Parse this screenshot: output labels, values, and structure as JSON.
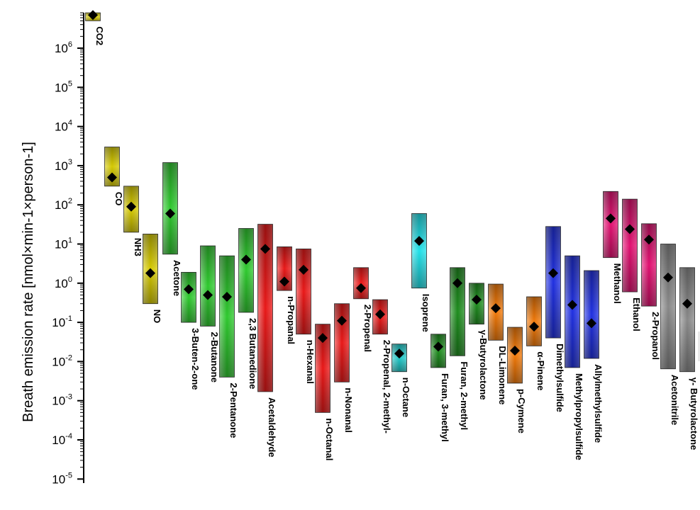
{
  "chart_data": {
    "type": "range",
    "ylabel": "Breath emission rate [nmol×min-1×person-1]",
    "yscale": "log",
    "ylim_exp": [
      -5,
      7
    ],
    "yticks": [
      "10-5",
      "10-4",
      "10-3",
      "10-2",
      "10-1",
      "100",
      "101",
      "102",
      "103",
      "104",
      "105",
      "106"
    ],
    "compounds": [
      {
        "name": "CO2",
        "min": 5000000,
        "max": 8000000,
        "median": 7000000,
        "color": "#d4c800"
      },
      {
        "name": "CO",
        "min": 300,
        "max": 3000,
        "median": 500,
        "color": "#d4c800"
      },
      {
        "name": "NH3",
        "min": 20,
        "max": 300,
        "median": 90,
        "color": "#d4c800"
      },
      {
        "name": "NO",
        "min": 0.3,
        "max": 18,
        "median": 1.8,
        "color": "#d4c800"
      },
      {
        "name": "Acetone",
        "min": 5.5,
        "max": 1200,
        "median": 60,
        "color": "#2ec82e"
      },
      {
        "name": "3-Buten-2-one",
        "min": 0.1,
        "max": 1.9,
        "median": 0.7,
        "color": "#2ec82e"
      },
      {
        "name": "2-Butanone",
        "min": 0.08,
        "max": 9,
        "median": 0.5,
        "color": "#2ec82e"
      },
      {
        "name": "2-Pentanone",
        "min": 0.004,
        "max": 5,
        "median": 0.45,
        "color": "#2ec82e"
      },
      {
        "name": "2,3 Butanedione",
        "min": 0.18,
        "max": 25,
        "median": 4,
        "color": "#2ec82e"
      },
      {
        "name": "Acetaldehyde",
        "min": 0.0017,
        "max": 32,
        "median": 7.5,
        "color": "#e81818"
      },
      {
        "name": "n-Propanal",
        "min": 0.65,
        "max": 8.5,
        "median": 1.1,
        "color": "#e81818"
      },
      {
        "name": "n-Hexanal",
        "min": 0.05,
        "max": 7.5,
        "median": 2.2,
        "color": "#e81818"
      },
      {
        "name": "n-Octanal",
        "min": 0.0005,
        "max": 0.09,
        "median": 0.04,
        "color": "#e81818"
      },
      {
        "name": "n-Nonanal",
        "min": 0.003,
        "max": 0.3,
        "median": 0.11,
        "color": "#e81818"
      },
      {
        "name": "2-Propenal",
        "min": 0.4,
        "max": 2.5,
        "median": 0.75,
        "color": "#e81818"
      },
      {
        "name": "2-Propenal, 2-methyl-",
        "min": 0.05,
        "max": 0.38,
        "median": 0.16,
        "color": "#e81818"
      },
      {
        "name": "n-Octane",
        "min": 0.0055,
        "max": 0.028,
        "median": 0.016,
        "color": "#20c8c8"
      },
      {
        "name": "Isoprene",
        "min": 0.75,
        "max": 60,
        "median": 12,
        "color": "#20e0e8"
      },
      {
        "name": "Furan, 3-methyl",
        "min": 0.007,
        "max": 0.05,
        "median": 0.024,
        "color": "#1e8c1e"
      },
      {
        "name": "Furan, 2-methyl",
        "min": 0.014,
        "max": 2.5,
        "median": 1.0,
        "color": "#1e8c1e"
      },
      {
        "name": "γ-Butyrolactone",
        "min": 0.09,
        "max": 1.0,
        "median": 0.38,
        "color": "#1e8c1e"
      },
      {
        "name": "DL-Limonene",
        "min": 0.035,
        "max": 0.95,
        "median": 0.23,
        "color": "#f07808"
      },
      {
        "name": "p-Cymene",
        "min": 0.0028,
        "max": 0.075,
        "median": 0.019,
        "color": "#f07808"
      },
      {
        "name": "α-Pinene",
        "min": 0.025,
        "max": 0.45,
        "median": 0.078,
        "color": "#f07808"
      },
      {
        "name": "Dimethylsulfide",
        "min": 0.04,
        "max": 28,
        "median": 1.8,
        "color": "#2030e0"
      },
      {
        "name": "Methylpropylsulfide",
        "min": 0.007,
        "max": 5,
        "median": 0.28,
        "color": "#2030e0"
      },
      {
        "name": "Allylmethylsulfide",
        "min": 0.012,
        "max": 2.1,
        "median": 0.095,
        "color": "#2030e0"
      },
      {
        "name": "Methanol",
        "min": 4.5,
        "max": 220,
        "median": 45,
        "color": "#e01070"
      },
      {
        "name": "Ethanol",
        "min": 0.6,
        "max": 140,
        "median": 24,
        "color": "#e01070"
      },
      {
        "name": "2-Propanol",
        "min": 0.26,
        "max": 33,
        "median": 13,
        "color": "#e01070"
      },
      {
        "name": "Acetonitrile",
        "min": 0.0065,
        "max": 10,
        "median": 1.4,
        "color": "#888888"
      },
      {
        "name": "γ- Butyrolactone",
        "min": 0.0055,
        "max": 2.5,
        "median": 0.3,
        "color": "#888888"
      }
    ]
  }
}
